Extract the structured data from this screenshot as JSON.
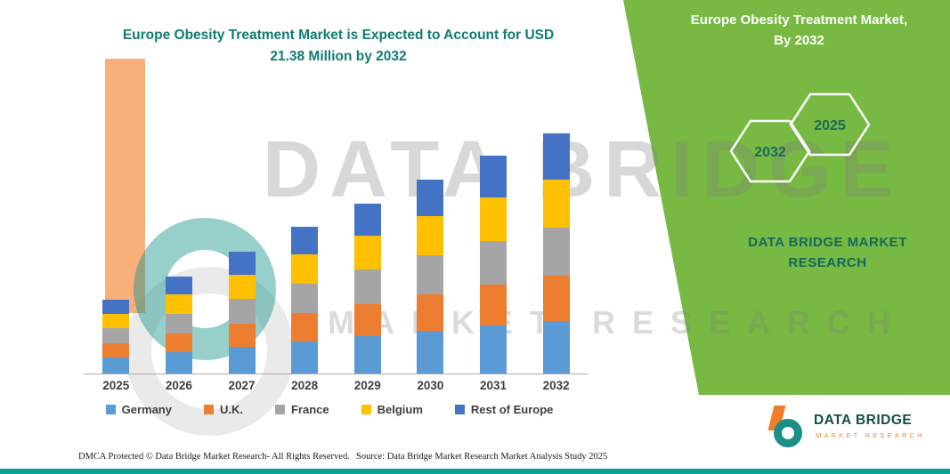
{
  "title": {
    "line1": "Europe Obesity Treatment Market is Expected to Account for USD",
    "line2": "21.38 Million by 2032"
  },
  "side_panel": {
    "heading_line1": "Europe Obesity Treatment Market,",
    "heading_line2": "By 2032",
    "hex_years": [
      "2032",
      "2025"
    ],
    "brand": "DATA BRIDGE MARKET RESEARCH",
    "bg_color": "#77B943",
    "heading_color": "#FFFFFF",
    "accent_text_color": "#1C6B5A"
  },
  "watermark": {
    "line1": "DATA BRIDGE",
    "line2": "MARKET RESEARCH"
  },
  "logo": {
    "title": "DATA BRIDGE",
    "subtitle": "MARKET RESEARCH",
    "orange": "#F07E26",
    "teal": "#1A8F85"
  },
  "footer": {
    "dmca": "DMCA Protected © Data Bridge Market Research-  All Rights Reserved.",
    "source": "Source: Data Bridge Market Research  Market Analysis Study 2025",
    "bar_color": "#0FA092"
  },
  "chart_data": {
    "type": "bar",
    "stacked": true,
    "title": "Europe Obesity Treatment Market is Expected to Account for USD 21.38 Million by 2032",
    "unit": "USD Million",
    "categories": [
      "2025",
      "2026",
      "2027",
      "2028",
      "2029",
      "2030",
      "2031",
      "2032"
    ],
    "series": [
      {
        "name": "Germany",
        "color": "#5B9BD5",
        "values": [
          1.45,
          1.91,
          2.4,
          2.88,
          3.34,
          3.81,
          4.27,
          4.7
        ]
      },
      {
        "name": "U.K.",
        "color": "#ED7D31",
        "values": [
          1.25,
          1.65,
          2.07,
          2.49,
          2.89,
          3.29,
          3.69,
          4.06
        ]
      },
      {
        "name": "France",
        "color": "#A5A5A5",
        "values": [
          1.32,
          1.74,
          2.18,
          2.62,
          3.04,
          3.46,
          3.88,
          4.28
        ]
      },
      {
        "name": "Belgium",
        "color": "#FFC000",
        "values": [
          1.32,
          1.74,
          2.18,
          2.62,
          3.04,
          3.46,
          3.88,
          4.28
        ]
      },
      {
        "name": "Rest of Europe",
        "color": "#4472C4",
        "values": [
          1.25,
          1.65,
          2.07,
          2.49,
          2.89,
          3.29,
          3.69,
          4.06
        ]
      }
    ],
    "totals": [
      6.6,
      8.7,
      10.9,
      13.1,
      15.2,
      17.3,
      19.4,
      21.38
    ],
    "ylim": [
      0,
      23
    ],
    "grid": false,
    "legend_position": "bottom",
    "axis_label_color": "#3F3F3F",
    "title_color": "#107C74"
  }
}
